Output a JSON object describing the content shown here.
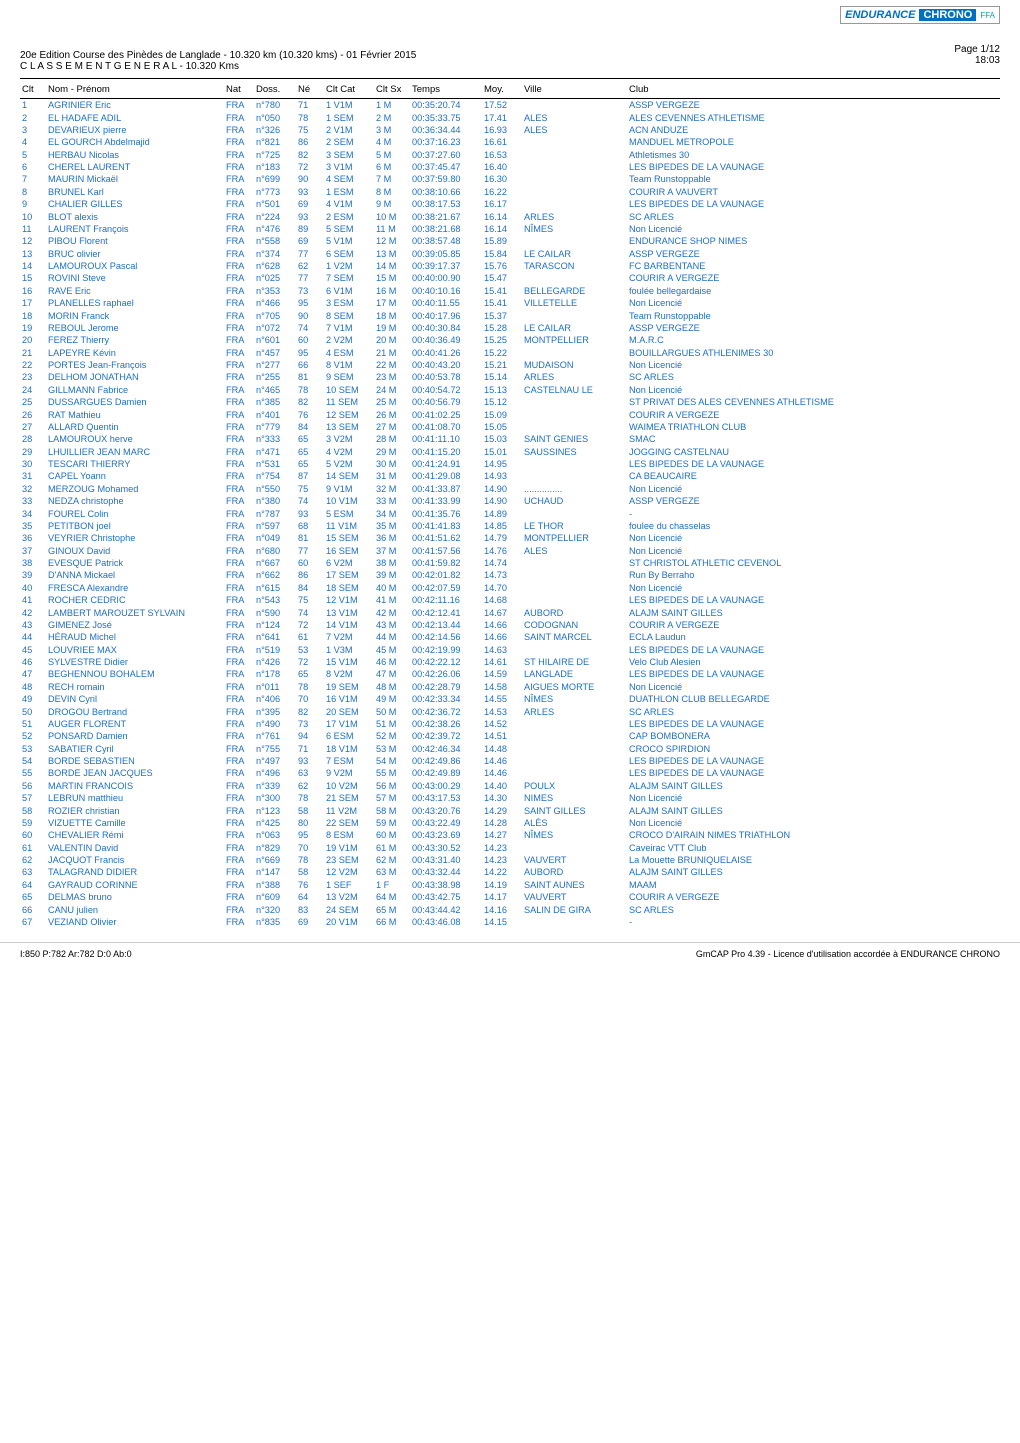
{
  "logo": {
    "endurance": "ENDURANCE",
    "chrono": "CHRONO",
    "ffa": "FFA"
  },
  "header": {
    "line1": "20e Edition Course des Pinèdes de Langlade - 10.320 km (10.320 kms) - 01 Février 2015",
    "line2": "C L A S S E M E N T   G E N E R A L - 10.320 Kms"
  },
  "page_meta": {
    "page": "Page 1/12",
    "time": "18:03"
  },
  "columns": [
    "Clt",
    "Nom - Prénom",
    "Nat",
    "Doss.",
    "Né",
    "Clt Cat",
    "Clt Sx",
    "Temps",
    "Moy.",
    "Ville",
    "Club"
  ],
  "column_classes": [
    "col-clt",
    "col-nom",
    "col-nat",
    "col-doss",
    "col-ne",
    "col-cat",
    "col-sx",
    "col-tmp",
    "col-moy",
    "col-ville",
    "col-club"
  ],
  "colors": {
    "row_text": "#1f6fc2",
    "header_text": "#000000",
    "rule": "#000000"
  },
  "rows": [
    {
      "clt": "1",
      "nom": "AGRINIER Eric",
      "nat": "FRA",
      "doss": "n°780",
      "ne": "71",
      "cat": "1 V1M",
      "sx": "1 M",
      "temps": "00:35:20.74",
      "moy": "17.52",
      "ville": "",
      "club": "ASSP VERGEZE"
    },
    {
      "clt": "2",
      "nom": "EL HADAFE ADIL",
      "nat": "FRA",
      "doss": "n°050",
      "ne": "78",
      "cat": "1 SEM",
      "sx": "2 M",
      "temps": "00:35:33.75",
      "moy": "17.41",
      "ville": "ALES",
      "club": "ALES CEVENNES ATHLETISME"
    },
    {
      "clt": "3",
      "nom": "DEVARIEUX pierre",
      "nat": "FRA",
      "doss": "n°326",
      "ne": "75",
      "cat": "2 V1M",
      "sx": "3 M",
      "temps": "00:36:34.44",
      "moy": "16.93",
      "ville": "ALES",
      "club": "ACN ANDUZE"
    },
    {
      "clt": "4",
      "nom": "EL GOURCH Abdelmajid",
      "nat": "FRA",
      "doss": "n°821",
      "ne": "86",
      "cat": "2 SEM",
      "sx": "4 M",
      "temps": "00:37:16.23",
      "moy": "16.61",
      "ville": "",
      "club": "MANDUEL METROPOLE"
    },
    {
      "clt": "5",
      "nom": "HERBAU Nicolas",
      "nat": "FRA",
      "doss": "n°725",
      "ne": "82",
      "cat": "3 SEM",
      "sx": "5 M",
      "temps": "00:37:27.60",
      "moy": "16.53",
      "ville": "",
      "club": "Athletismes 30"
    },
    {
      "clt": "6",
      "nom": "CHEREL LAURENT",
      "nat": "FRA",
      "doss": "n°183",
      "ne": "72",
      "cat": "3 V1M",
      "sx": "6 M",
      "temps": "00:37:45.47",
      "moy": "16.40",
      "ville": "",
      "club": "LES BIPEDES DE LA VAUNAGE"
    },
    {
      "clt": "7",
      "nom": "MAURIN Mickaël",
      "nat": "FRA",
      "doss": "n°699",
      "ne": "90",
      "cat": "4 SEM",
      "sx": "7 M",
      "temps": "00:37:59.80",
      "moy": "16.30",
      "ville": "",
      "club": "Team Runstoppable"
    },
    {
      "clt": "8",
      "nom": "BRUNEL Karl",
      "nat": "FRA",
      "doss": "n°773",
      "ne": "93",
      "cat": "1 ESM",
      "sx": "8 M",
      "temps": "00:38:10.66",
      "moy": "16.22",
      "ville": "",
      "club": "COURIR A VAUVERT"
    },
    {
      "clt": "9",
      "nom": "CHALIER GILLES",
      "nat": "FRA",
      "doss": "n°501",
      "ne": "69",
      "cat": "4 V1M",
      "sx": "9 M",
      "temps": "00:38:17.53",
      "moy": "16.17",
      "ville": "",
      "club": "LES BIPEDES DE LA VAUNAGE"
    },
    {
      "clt": "10",
      "nom": "BLOT alexis",
      "nat": "FRA",
      "doss": "n°224",
      "ne": "93",
      "cat": "2 ESM",
      "sx": "10 M",
      "temps": "00:38:21.67",
      "moy": "16.14",
      "ville": "ARLES",
      "club": "SC ARLES"
    },
    {
      "clt": "11",
      "nom": "LAURENT François",
      "nat": "FRA",
      "doss": "n°476",
      "ne": "89",
      "cat": "5 SEM",
      "sx": "11 M",
      "temps": "00:38:21.68",
      "moy": "16.14",
      "ville": "NÎMES",
      "club": "Non Licencié"
    },
    {
      "clt": "12",
      "nom": "PIBOU Florent",
      "nat": "FRA",
      "doss": "n°558",
      "ne": "69",
      "cat": "5 V1M",
      "sx": "12 M",
      "temps": "00:38:57.48",
      "moy": "15.89",
      "ville": "",
      "club": "ENDURANCE SHOP NIMES"
    },
    {
      "clt": "13",
      "nom": "BRUC olivier",
      "nat": "FRA",
      "doss": "n°374",
      "ne": "77",
      "cat": "6 SEM",
      "sx": "13 M",
      "temps": "00:39:05.85",
      "moy": "15.84",
      "ville": "LE CAILAR",
      "club": "ASSP VERGEZE"
    },
    {
      "clt": "14",
      "nom": "LAMOUROUX Pascal",
      "nat": "FRA",
      "doss": "n°628",
      "ne": "62",
      "cat": "1 V2M",
      "sx": "14 M",
      "temps": "00:39:17.37",
      "moy": "15.76",
      "ville": "TARASCON",
      "club": "FC BARBENTANE"
    },
    {
      "clt": "15",
      "nom": "ROVINI Steve",
      "nat": "FRA",
      "doss": "n°025",
      "ne": "77",
      "cat": "7 SEM",
      "sx": "15 M",
      "temps": "00:40:00.90",
      "moy": "15.47",
      "ville": "",
      "club": "COURIR A VERGEZE"
    },
    {
      "clt": "16",
      "nom": "RAVE Eric",
      "nat": "FRA",
      "doss": "n°353",
      "ne": "73",
      "cat": "6 V1M",
      "sx": "16 M",
      "temps": "00:40:10.16",
      "moy": "15.41",
      "ville": "BELLEGARDE",
      "club": "foulée bellegardaise"
    },
    {
      "clt": "17",
      "nom": "PLANELLES raphael",
      "nat": "FRA",
      "doss": "n°466",
      "ne": "95",
      "cat": "3 ESM",
      "sx": "17 M",
      "temps": "00:40:11.55",
      "moy": "15.41",
      "ville": "VILLETELLE",
      "club": "Non Licencié"
    },
    {
      "clt": "18",
      "nom": "MORIN Franck",
      "nat": "FRA",
      "doss": "n°705",
      "ne": "90",
      "cat": "8 SEM",
      "sx": "18 M",
      "temps": "00:40:17.96",
      "moy": "15.37",
      "ville": "",
      "club": "Team Runstoppable"
    },
    {
      "clt": "19",
      "nom": "REBOUL Jerome",
      "nat": "FRA",
      "doss": "n°072",
      "ne": "74",
      "cat": "7 V1M",
      "sx": "19 M",
      "temps": "00:40:30.84",
      "moy": "15.28",
      "ville": "LE CAILAR",
      "club": "ASSP VERGEZE"
    },
    {
      "clt": "20",
      "nom": "FEREZ Thierry",
      "nat": "FRA",
      "doss": "n°601",
      "ne": "60",
      "cat": "2 V2M",
      "sx": "20 M",
      "temps": "00:40:36.49",
      "moy": "15.25",
      "ville": "MONTPELLIER",
      "club": "M.A.R.C"
    },
    {
      "clt": "21",
      "nom": "LAPEYRE Kévin",
      "nat": "FRA",
      "doss": "n°457",
      "ne": "95",
      "cat": "4 ESM",
      "sx": "21 M",
      "temps": "00:40:41.26",
      "moy": "15.22",
      "ville": "",
      "club": "BOUILLARGUES ATHLENIMES 30"
    },
    {
      "clt": "22",
      "nom": "PORTES Jean-François",
      "nat": "FRA",
      "doss": "n°277",
      "ne": "66",
      "cat": "8 V1M",
      "sx": "22 M",
      "temps": "00:40:43.20",
      "moy": "15.21",
      "ville": "MUDAISON",
      "club": "Non Licencié"
    },
    {
      "clt": "23",
      "nom": "DELHOM JONATHAN",
      "nat": "FRA",
      "doss": "n°255",
      "ne": "81",
      "cat": "9 SEM",
      "sx": "23 M",
      "temps": "00:40:53.78",
      "moy": "15.14",
      "ville": "ARLES",
      "club": "SC ARLES"
    },
    {
      "clt": "24",
      "nom": "GILLMANN Fabrice",
      "nat": "FRA",
      "doss": "n°465",
      "ne": "78",
      "cat": "10 SEM",
      "sx": "24 M",
      "temps": "00:40:54.72",
      "moy": "15.13",
      "ville": "CASTELNAU LE",
      "club": "Non Licencié"
    },
    {
      "clt": "25",
      "nom": "DUSSARGUES Damien",
      "nat": "FRA",
      "doss": "n°385",
      "ne": "82",
      "cat": "11 SEM",
      "sx": "25 M",
      "temps": "00:40:56.79",
      "moy": "15.12",
      "ville": "",
      "club": "ST PRIVAT DES ALES CEVENNES ATHLETISME"
    },
    {
      "clt": "26",
      "nom": "RAT Mathieu",
      "nat": "FRA",
      "doss": "n°401",
      "ne": "76",
      "cat": "12 SEM",
      "sx": "26 M",
      "temps": "00:41:02.25",
      "moy": "15.09",
      "ville": "",
      "club": "COURIR A VERGEZE"
    },
    {
      "clt": "27",
      "nom": "ALLARD Quentin",
      "nat": "FRA",
      "doss": "n°779",
      "ne": "84",
      "cat": "13 SEM",
      "sx": "27 M",
      "temps": "00:41:08.70",
      "moy": "15.05",
      "ville": "",
      "club": "WAIMEA TRIATHLON CLUB"
    },
    {
      "clt": "28",
      "nom": "LAMOUROUX herve",
      "nat": "FRA",
      "doss": "n°333",
      "ne": "65",
      "cat": "3 V2M",
      "sx": "28 M",
      "temps": "00:41:11.10",
      "moy": "15.03",
      "ville": "SAINT GENIES",
      "club": "SMAC"
    },
    {
      "clt": "29",
      "nom": "LHUILLIER JEAN MARC",
      "nat": "FRA",
      "doss": "n°471",
      "ne": "65",
      "cat": "4 V2M",
      "sx": "29 M",
      "temps": "00:41:15.20",
      "moy": "15.01",
      "ville": "SAUSSINES",
      "club": "JOGGING CASTELNAU"
    },
    {
      "clt": "30",
      "nom": "TESCARI THIERRY",
      "nat": "FRA",
      "doss": "n°531",
      "ne": "65",
      "cat": "5 V2M",
      "sx": "30 M",
      "temps": "00:41:24.91",
      "moy": "14.95",
      "ville": "",
      "club": "LES BIPEDES DE LA VAUNAGE"
    },
    {
      "clt": "31",
      "nom": "CAPEL Yoann",
      "nat": "FRA",
      "doss": "n°754",
      "ne": "87",
      "cat": "14 SEM",
      "sx": "31 M",
      "temps": "00:41:29.08",
      "moy": "14.93",
      "ville": "",
      "club": "CA BEAUCAIRE"
    },
    {
      "clt": "32",
      "nom": "MERZOUG Mohamed",
      "nat": "FRA",
      "doss": "n°550",
      "ne": "75",
      "cat": "9 V1M",
      "sx": "32 M",
      "temps": "00:41:33.87",
      "moy": "14.90",
      "ville": "...............",
      "club": "Non Licencié"
    },
    {
      "clt": "33",
      "nom": "NEDZA christophe",
      "nat": "FRA",
      "doss": "n°380",
      "ne": "74",
      "cat": "10 V1M",
      "sx": "33 M",
      "temps": "00:41:33.99",
      "moy": "14.90",
      "ville": "UCHAUD",
      "club": "ASSP VERGEZE"
    },
    {
      "clt": "34",
      "nom": "FOUREL Colin",
      "nat": "FRA",
      "doss": "n°787",
      "ne": "93",
      "cat": "5 ESM",
      "sx": "34 M",
      "temps": "00:41:35.76",
      "moy": "14.89",
      "ville": "",
      "club": "-"
    },
    {
      "clt": "35",
      "nom": "PETITBON joel",
      "nat": "FRA",
      "doss": "n°597",
      "ne": "68",
      "cat": "11 V1M",
      "sx": "35 M",
      "temps": "00:41:41.83",
      "moy": "14.85",
      "ville": "LE THOR",
      "club": "foulee du chasselas"
    },
    {
      "clt": "36",
      "nom": "VEYRIER Christophe",
      "nat": "FRA",
      "doss": "n°049",
      "ne": "81",
      "cat": "15 SEM",
      "sx": "36 M",
      "temps": "00:41:51.62",
      "moy": "14.79",
      "ville": "MONTPELLIER",
      "club": "Non Licencié"
    },
    {
      "clt": "37",
      "nom": "GINOUX David",
      "nat": "FRA",
      "doss": "n°680",
      "ne": "77",
      "cat": "16 SEM",
      "sx": "37 M",
      "temps": "00:41:57.56",
      "moy": "14.76",
      "ville": "ALES",
      "club": "Non Licencié"
    },
    {
      "clt": "38",
      "nom": "EVESQUE Patrick",
      "nat": "FRA",
      "doss": "n°667",
      "ne": "60",
      "cat": "6 V2M",
      "sx": "38 M",
      "temps": "00:41:59.82",
      "moy": "14.74",
      "ville": "",
      "club": "ST CHRISTOL ATHLETIC CEVENOL"
    },
    {
      "clt": "39",
      "nom": "D'ANNA Mickael",
      "nat": "FRA",
      "doss": "n°662",
      "ne": "86",
      "cat": "17 SEM",
      "sx": "39 M",
      "temps": "00:42:01.82",
      "moy": "14.73",
      "ville": "",
      "club": "Run By Berraho"
    },
    {
      "clt": "40",
      "nom": "FRESCA Alexandre",
      "nat": "FRA",
      "doss": "n°615",
      "ne": "84",
      "cat": "18 SEM",
      "sx": "40 M",
      "temps": "00:42:07.59",
      "moy": "14.70",
      "ville": "",
      "club": "Non Licencié"
    },
    {
      "clt": "41",
      "nom": "ROCHER CEDRIC",
      "nat": "FRA",
      "doss": "n°543",
      "ne": "75",
      "cat": "12 V1M",
      "sx": "41 M",
      "temps": "00:42:11.16",
      "moy": "14.68",
      "ville": "",
      "club": "LES BIPEDES DE LA VAUNAGE"
    },
    {
      "clt": "42",
      "nom": "LAMBERT MAROUZET SYLVAIN",
      "nat": "FRA",
      "doss": "n°590",
      "ne": "74",
      "cat": "13 V1M",
      "sx": "42 M",
      "temps": "00:42:12.41",
      "moy": "14.67",
      "ville": "AUBORD",
      "club": "ALAJM SAINT GILLES"
    },
    {
      "clt": "43",
      "nom": "GIMENEZ José",
      "nat": "FRA",
      "doss": "n°124",
      "ne": "72",
      "cat": "14 V1M",
      "sx": "43 M",
      "temps": "00:42:13.44",
      "moy": "14.66",
      "ville": "CODOGNAN",
      "club": "COURIR A VERGEZE"
    },
    {
      "clt": "44",
      "nom": "HÉRAUD Michel",
      "nat": "FRA",
      "doss": "n°641",
      "ne": "61",
      "cat": "7 V2M",
      "sx": "44 M",
      "temps": "00:42:14.56",
      "moy": "14.66",
      "ville": "SAINT MARCEL",
      "club": "ECLA Laudun"
    },
    {
      "clt": "45",
      "nom": "LOUVRIEE MAX",
      "nat": "FRA",
      "doss": "n°519",
      "ne": "53",
      "cat": "1 V3M",
      "sx": "45 M",
      "temps": "00:42:19.99",
      "moy": "14.63",
      "ville": "",
      "club": "LES BIPEDES DE LA VAUNAGE"
    },
    {
      "clt": "46",
      "nom": "SYLVESTRE Didier",
      "nat": "FRA",
      "doss": "n°426",
      "ne": "72",
      "cat": "15 V1M",
      "sx": "46 M",
      "temps": "00:42:22.12",
      "moy": "14.61",
      "ville": "ST HILAIRE DE",
      "club": "Velo Club Alesien"
    },
    {
      "clt": "47",
      "nom": "BEGHENNOU BOHALEM",
      "nat": "FRA",
      "doss": "n°178",
      "ne": "65",
      "cat": "8 V2M",
      "sx": "47 M",
      "temps": "00:42:26.06",
      "moy": "14.59",
      "ville": "LANGLADE",
      "club": "LES BIPEDES DE LA VAUNAGE"
    },
    {
      "clt": "48",
      "nom": "RECH romain",
      "nat": "FRA",
      "doss": "n°011",
      "ne": "78",
      "cat": "19 SEM",
      "sx": "48 M",
      "temps": "00:42:28.79",
      "moy": "14.58",
      "ville": "AIGUES MORTE",
      "club": "Non Licencié"
    },
    {
      "clt": "49",
      "nom": "DEVIN Cyril",
      "nat": "FRA",
      "doss": "n°406",
      "ne": "70",
      "cat": "16 V1M",
      "sx": "49 M",
      "temps": "00:42:33.34",
      "moy": "14.55",
      "ville": "NÎMES",
      "club": "DUATHLON CLUB BELLEGARDE"
    },
    {
      "clt": "50",
      "nom": "DROGOU Bertrand",
      "nat": "FRA",
      "doss": "n°395",
      "ne": "82",
      "cat": "20 SEM",
      "sx": "50 M",
      "temps": "00:42:36.72",
      "moy": "14.53",
      "ville": "ARLES",
      "club": "SC ARLES"
    },
    {
      "clt": "51",
      "nom": "AUGER FLORENT",
      "nat": "FRA",
      "doss": "n°490",
      "ne": "73",
      "cat": "17 V1M",
      "sx": "51 M",
      "temps": "00:42:38.26",
      "moy": "14.52",
      "ville": "",
      "club": "LES BIPEDES DE LA VAUNAGE"
    },
    {
      "clt": "52",
      "nom": "PONSARD Damien",
      "nat": "FRA",
      "doss": "n°761",
      "ne": "94",
      "cat": "6 ESM",
      "sx": "52 M",
      "temps": "00:42:39.72",
      "moy": "14.51",
      "ville": "",
      "club": "CAP BOMBONERA"
    },
    {
      "clt": "53",
      "nom": "SABATIER Cyril",
      "nat": "FRA",
      "doss": "n°755",
      "ne": "71",
      "cat": "18 V1M",
      "sx": "53 M",
      "temps": "00:42:46.34",
      "moy": "14.48",
      "ville": "",
      "club": "CROCO SPIRDION"
    },
    {
      "clt": "54",
      "nom": "BORDE SEBASTIEN",
      "nat": "FRA",
      "doss": "n°497",
      "ne": "93",
      "cat": "7 ESM",
      "sx": "54 M",
      "temps": "00:42:49.86",
      "moy": "14.46",
      "ville": "",
      "club": "LES BIPEDES DE LA VAUNAGE"
    },
    {
      "clt": "55",
      "nom": "BORDE JEAN JACQUES",
      "nat": "FRA",
      "doss": "n°496",
      "ne": "63",
      "cat": "9 V2M",
      "sx": "55 M",
      "temps": "00:42:49.89",
      "moy": "14.46",
      "ville": "",
      "club": "LES BIPEDES DE LA VAUNAGE"
    },
    {
      "clt": "56",
      "nom": "MARTIN FRANCOIS",
      "nat": "FRA",
      "doss": "n°339",
      "ne": "62",
      "cat": "10 V2M",
      "sx": "56 M",
      "temps": "00:43:00.29",
      "moy": "14.40",
      "ville": "POULX",
      "club": "ALAJM SAINT GILLES"
    },
    {
      "clt": "57",
      "nom": "LEBRUN matthieu",
      "nat": "FRA",
      "doss": "n°300",
      "ne": "78",
      "cat": "21 SEM",
      "sx": "57 M",
      "temps": "00:43:17.53",
      "moy": "14.30",
      "ville": "NIMES",
      "club": "Non Licencié"
    },
    {
      "clt": "58",
      "nom": "ROZIER christian",
      "nat": "FRA",
      "doss": "n°123",
      "ne": "58",
      "cat": "11 V2M",
      "sx": "58 M",
      "temps": "00:43:20.76",
      "moy": "14.29",
      "ville": "SAINT GILLES",
      "club": "ALAJM SAINT GILLES"
    },
    {
      "clt": "59",
      "nom": "VIZUETTE Camille",
      "nat": "FRA",
      "doss": "n°425",
      "ne": "80",
      "cat": "22 SEM",
      "sx": "59 M",
      "temps": "00:43:22.49",
      "moy": "14.28",
      "ville": "ALÈS",
      "club": "Non Licencié"
    },
    {
      "clt": "60",
      "nom": "CHEVALIER Rémi",
      "nat": "FRA",
      "doss": "n°063",
      "ne": "95",
      "cat": "8 ESM",
      "sx": "60 M",
      "temps": "00:43:23.69",
      "moy": "14.27",
      "ville": "NÎMES",
      "club": "CROCO D'AIRAIN NIMES TRIATHLON"
    },
    {
      "clt": "61",
      "nom": "VALENTIN David",
      "nat": "FRA",
      "doss": "n°829",
      "ne": "70",
      "cat": "19 V1M",
      "sx": "61 M",
      "temps": "00:43:30.52",
      "moy": "14.23",
      "ville": "",
      "club": "Caveirac VTT Club"
    },
    {
      "clt": "62",
      "nom": "JACQUOT Francis",
      "nat": "FRA",
      "doss": "n°669",
      "ne": "78",
      "cat": "23 SEM",
      "sx": "62 M",
      "temps": "00:43:31.40",
      "moy": "14.23",
      "ville": "VAUVERT",
      "club": "La Mouette BRUNIQUELAISE"
    },
    {
      "clt": "63",
      "nom": "TALAGRAND DIDIER",
      "nat": "FRA",
      "doss": "n°147",
      "ne": "58",
      "cat": "12 V2M",
      "sx": "63 M",
      "temps": "00:43:32.44",
      "moy": "14.22",
      "ville": "AUBORD",
      "club": "ALAJM SAINT GILLES"
    },
    {
      "clt": "64",
      "nom": "GAYRAUD CORINNE",
      "nat": "FRA",
      "doss": "n°388",
      "ne": "76",
      "cat": "1 SEF",
      "sx": "1 F",
      "temps": "00:43:38.98",
      "moy": "14.19",
      "ville": "SAINT AUNES",
      "club": "MAAM"
    },
    {
      "clt": "65",
      "nom": "DELMAS bruno",
      "nat": "FRA",
      "doss": "n°609",
      "ne": "64",
      "cat": "13 V2M",
      "sx": "64 M",
      "temps": "00:43:42.75",
      "moy": "14.17",
      "ville": "VAUVERT",
      "club": "COURIR A VERGEZE"
    },
    {
      "clt": "66",
      "nom": "CANU julien",
      "nat": "FRA",
      "doss": "n°320",
      "ne": "83",
      "cat": "24 SEM",
      "sx": "65 M",
      "temps": "00:43:44.42",
      "moy": "14.16",
      "ville": "SALIN DE GIRA",
      "club": "SC ARLES"
    },
    {
      "clt": "67",
      "nom": "VEZIAND Olivier",
      "nat": "FRA",
      "doss": "n°835",
      "ne": "69",
      "cat": "20 V1M",
      "sx": "66 M",
      "temps": "00:43:46.08",
      "moy": "14.15",
      "ville": "",
      "club": "-"
    }
  ],
  "footer": {
    "left": "I:850 P:782 Ar:782 D:0 Ab:0",
    "right": "GmCAP Pro 4.39 - Licence d'utilisation accordée à ENDURANCE CHRONO"
  }
}
